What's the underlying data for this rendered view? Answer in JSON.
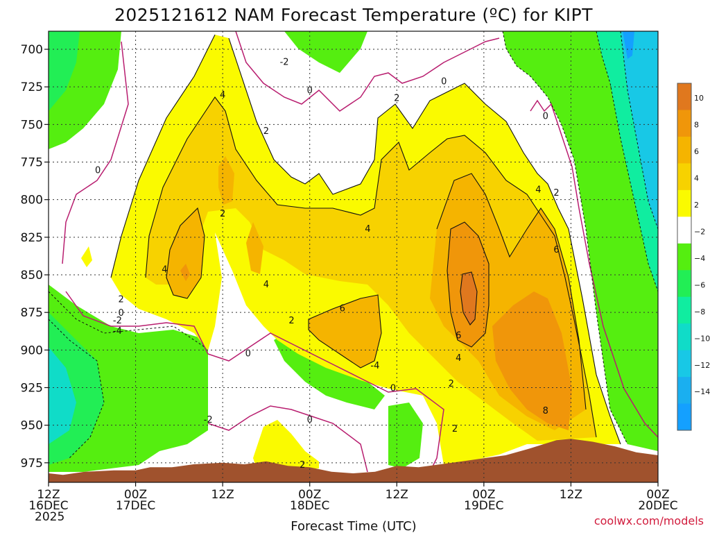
{
  "chart_data": {
    "type": "heatmap",
    "title": "2025121612 NAM Forecast Temperature (ºC) for KIPT",
    "xlabel": "Forecast Time (UTC)",
    "ylabel": "",
    "y_axis_values": [
      700,
      725,
      750,
      775,
      800,
      825,
      850,
      875,
      900,
      925,
      950,
      975
    ],
    "y_ticks": [
      "700",
      "725",
      "750",
      "775",
      "800",
      "825",
      "850",
      "875",
      "900",
      "925",
      "950",
      "975"
    ],
    "ylim": [
      988,
      688
    ],
    "x_ticks": [
      {
        "hour": 0,
        "line1": "12Z",
        "line2": "16DEC",
        "line3": "2025"
      },
      {
        "hour": 12,
        "line1": "00Z",
        "line2": "17DEC",
        "line3": ""
      },
      {
        "hour": 24,
        "line1": "12Z",
        "line2": "",
        "line3": ""
      },
      {
        "hour": 36,
        "line1": "00Z",
        "line2": "18DEC",
        "line3": ""
      },
      {
        "hour": 48,
        "line1": "12Z",
        "line2": "",
        "line3": ""
      },
      {
        "hour": 60,
        "line1": "00Z",
        "line2": "19DEC",
        "line3": ""
      },
      {
        "hour": 72,
        "line1": "12Z",
        "line2": "",
        "line3": ""
      },
      {
        "hour": 84,
        "line1": "00Z",
        "line2": "20DEC",
        "line3": ""
      }
    ],
    "xlim": [
      0,
      84
    ],
    "grid": true,
    "legend": "colorbar right",
    "colorbar": {
      "labels": [
        "10",
        "8",
        "6",
        "4",
        "2",
        "−2",
        "−4",
        "−6",
        "−8",
        "−10",
        "−12",
        "−14"
      ],
      "colors": [
        "#e0781e",
        "#f0960a",
        "#f5b400",
        "#f7d200",
        "#fafa00",
        "#ffffff",
        "#55ee10",
        "#22ee55",
        "#10eda0",
        "#10dcc8",
        "#18c8e6",
        "#1aaff0",
        "#14a0ff"
      ]
    },
    "contour_labels": [
      {
        "text": "-2",
        "hour": 32.5,
        "p": 708
      },
      {
        "text": "0",
        "hour": 36,
        "p": 727
      },
      {
        "text": "0",
        "hour": 54.5,
        "p": 721
      },
      {
        "text": "2",
        "hour": 48,
        "p": 732
      },
      {
        "text": "4",
        "hour": 24,
        "p": 730
      },
      {
        "text": "2",
        "hour": 30,
        "p": 754
      },
      {
        "text": "0",
        "hour": 6.8,
        "p": 780
      },
      {
        "text": "0",
        "hour": 68.5,
        "p": 744
      },
      {
        "text": "2",
        "hour": 24,
        "p": 809
      },
      {
        "text": "4",
        "hour": 44,
        "p": 819
      },
      {
        "text": "4",
        "hour": 67.5,
        "p": 793
      },
      {
        "text": "2",
        "hour": 70,
        "p": 795
      },
      {
        "text": "6",
        "hour": 70,
        "p": 833
      },
      {
        "text": "4",
        "hour": 16,
        "p": 846
      },
      {
        "text": "4",
        "hour": 30,
        "p": 856
      },
      {
        "text": "2",
        "hour": 10,
        "p": 866
      },
      {
        "text": "0",
        "hour": 10,
        "p": 875
      },
      {
        "text": "-2",
        "hour": 9.5,
        "p": 880
      },
      {
        "text": "-4",
        "hour": 9.5,
        "p": 887
      },
      {
        "text": "2",
        "hour": 33.5,
        "p": 880
      },
      {
        "text": "6",
        "hour": 40.5,
        "p": 872
      },
      {
        "text": "6",
        "hour": 56.5,
        "p": 890
      },
      {
        "text": "4",
        "hour": 56.5,
        "p": 905
      },
      {
        "text": "2",
        "hour": 55.5,
        "p": 922
      },
      {
        "text": "0",
        "hour": 27.5,
        "p": 902
      },
      {
        "text": "-4",
        "hour": 45,
        "p": 910
      },
      {
        "text": "0",
        "hour": 47.5,
        "p": 925
      },
      {
        "text": "8",
        "hour": 68.5,
        "p": 940
      },
      {
        "text": "-2",
        "hour": 22,
        "p": 946
      },
      {
        "text": "0",
        "hour": 36,
        "p": 946
      },
      {
        "text": "2",
        "hour": 56,
        "p": 952
      },
      {
        "text": "2",
        "hour": 35,
        "p": 976
      }
    ],
    "terrain_pressure": [
      [
        0,
        982
      ],
      [
        2,
        983
      ],
      [
        5,
        981
      ],
      [
        9,
        980
      ],
      [
        12,
        980
      ],
      [
        14,
        978
      ],
      [
        17,
        978
      ],
      [
        20,
        976
      ],
      [
        24,
        975
      ],
      [
        27,
        976
      ],
      [
        30,
        974
      ],
      [
        33,
        977
      ],
      [
        36,
        978
      ],
      [
        39,
        981
      ],
      [
        42,
        982
      ],
      [
        45,
        981
      ],
      [
        48,
        977
      ],
      [
        51,
        978
      ],
      [
        54,
        976
      ],
      [
        57,
        974
      ],
      [
        60,
        972
      ],
      [
        63,
        970
      ],
      [
        66,
        966
      ],
      [
        68,
        963
      ],
      [
        70,
        960
      ],
      [
        72,
        959
      ],
      [
        75,
        961
      ],
      [
        78,
        964
      ],
      [
        81,
        968
      ],
      [
        84,
        970
      ]
    ],
    "colors": {
      "terrain": "#a0522d",
      "isotherm_zero": "#b81d6f",
      "contour": "#111111"
    }
  },
  "credit": "coolwx.com/models"
}
